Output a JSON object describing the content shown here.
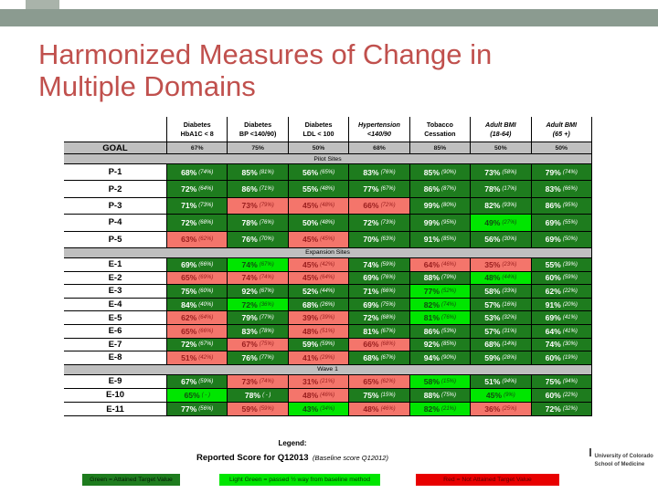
{
  "slide": {
    "title_line1": "Harmonized Measures of  Change in",
    "title_line2": "Multiple Domains"
  },
  "colors": {
    "accent_title": "#c0504d",
    "top_bar": "#8b9b90",
    "top_square": "#a9b3aa",
    "green": "#1e7c1e",
    "light_green": "#00e600",
    "red": "#f4756b",
    "legend_red": "#e80000",
    "band": "#bfbfbf"
  },
  "table": {
    "goal_label": "GOAL",
    "columns": [
      {
        "title": [
          "Diabetes",
          "HbA1C < 8"
        ],
        "goal": "67%",
        "italic": false
      },
      {
        "title": [
          "Diabetes",
          "BP <140/90)"
        ],
        "goal": "75%",
        "italic": false
      },
      {
        "title": [
          "Diabetes",
          "LDL < 100"
        ],
        "goal": "50%",
        "italic": false
      },
      {
        "title": [
          "Hypertension",
          "<140/90"
        ],
        "goal": "68%",
        "italic": true
      },
      {
        "title": [
          "Tobacco",
          "Cessation"
        ],
        "goal": "85%",
        "italic": false
      },
      {
        "title": [
          "Adult BMI",
          "(18-64)"
        ],
        "goal": "50%",
        "italic": true
      },
      {
        "title": [
          "Adult BMI",
          "(65 +)"
        ],
        "goal": "50%",
        "italic": true
      }
    ],
    "sections": [
      {
        "label": "Pilot Sites",
        "row_class": "pilot",
        "rows": [
          {
            "id": "P-1",
            "cells": [
              [
                "68%",
                "(74%)",
                "green"
              ],
              [
                "85%",
                "(81%)",
                "green"
              ],
              [
                "56%",
                "(65%)",
                "green"
              ],
              [
                "83%",
                "(76%)",
                "green"
              ],
              [
                "85%",
                "(90%)",
                "green"
              ],
              [
                "73%",
                "(58%)",
                "green"
              ],
              [
                "79%",
                "(74%)",
                "green"
              ]
            ]
          },
          {
            "id": "P-2",
            "cells": [
              [
                "72%",
                "(64%)",
                "green"
              ],
              [
                "86%",
                "(71%)",
                "green"
              ],
              [
                "55%",
                "(48%)",
                "green"
              ],
              [
                "77%",
                "(67%)",
                "green"
              ],
              [
                "86%",
                "(87%)",
                "green"
              ],
              [
                "78%",
                "(17%)",
                "green"
              ],
              [
                "83%",
                "(66%)",
                "green"
              ]
            ]
          },
          {
            "id": "P-3",
            "cells": [
              [
                "71%",
                "(73%)",
                "green"
              ],
              [
                "73%",
                "(79%)",
                "red"
              ],
              [
                "45%",
                "(48%)",
                "red"
              ],
              [
                "66%",
                "(72%)",
                "red"
              ],
              [
                "99%",
                "(80%)",
                "green"
              ],
              [
                "82%",
                "(93%)",
                "green"
              ],
              [
                "86%",
                "(95%)",
                "green"
              ]
            ]
          },
          {
            "id": "P-4",
            "cells": [
              [
                "72%",
                "(68%)",
                "green"
              ],
              [
                "78%",
                "(76%)",
                "green"
              ],
              [
                "50%",
                "(48%)",
                "green"
              ],
              [
                "72%",
                "(73%)",
                "green"
              ],
              [
                "99%",
                "(95%)",
                "green"
              ],
              [
                "49%",
                "(27%)",
                "light"
              ],
              [
                "69%",
                "(55%)",
                "green"
              ]
            ]
          },
          {
            "id": "P-5",
            "cells": [
              [
                "63%",
                "(62%)",
                "red"
              ],
              [
                "76%",
                "(70%)",
                "green"
              ],
              [
                "45%",
                "(45%)",
                "red"
              ],
              [
                "70%",
                "(63%)",
                "green"
              ],
              [
                "91%",
                "(85%)",
                "green"
              ],
              [
                "56%",
                "(30%)",
                "green"
              ],
              [
                "69%",
                "(50%)",
                "green"
              ]
            ]
          }
        ]
      },
      {
        "label": "Expansion Sites",
        "row_class": "expansion",
        "rows": [
          {
            "id": "E-1",
            "cells": [
              [
                "69%",
                "(66%)",
                "green"
              ],
              [
                "74%",
                "(67%)",
                "light"
              ],
              [
                "45%",
                "(42%)",
                "red"
              ],
              [
                "74%",
                "(59%)",
                "green"
              ],
              [
                "64%",
                "(46%)",
                "red"
              ],
              [
                "35%",
                "(23%)",
                "red"
              ],
              [
                "55%",
                "(39%)",
                "green"
              ]
            ]
          },
          {
            "id": "E-2",
            "cells": [
              [
                "65%",
                "(69%)",
                "red"
              ],
              [
                "74%",
                "(74%)",
                "red"
              ],
              [
                "45%",
                "(64%)",
                "red"
              ],
              [
                "69%",
                "(76%)",
                "green"
              ],
              [
                "88%",
                "(79%)",
                "green"
              ],
              [
                "48%",
                "(44%)",
                "light"
              ],
              [
                "60%",
                "(59%)",
                "green"
              ]
            ]
          },
          {
            "id": "E-3",
            "cells": [
              [
                "75%",
                "(60%)",
                "green"
              ],
              [
                "92%",
                "(67%)",
                "green"
              ],
              [
                "52%",
                "(44%)",
                "green"
              ],
              [
                "71%",
                "(66%)",
                "green"
              ],
              [
                "77%",
                "(52%)",
                "light"
              ],
              [
                "58%",
                "(33%)",
                "green"
              ],
              [
                "62%",
                "(22%)",
                "green"
              ]
            ]
          },
          {
            "id": "E-4",
            "cells": [
              [
                "84%",
                "(40%)",
                "green"
              ],
              [
                "72%",
                "(36%)",
                "light"
              ],
              [
                "68%",
                "(26%)",
                "green"
              ],
              [
                "69%",
                "(75%)",
                "green"
              ],
              [
                "82%",
                "(74%)",
                "light"
              ],
              [
                "57%",
                "(16%)",
                "green"
              ],
              [
                "91%",
                "(20%)",
                "green"
              ]
            ]
          },
          {
            "id": "E-5",
            "cells": [
              [
                "62%",
                "(64%)",
                "red"
              ],
              [
                "79%",
                "(77%)",
                "green"
              ],
              [
                "39%",
                "(39%)",
                "red"
              ],
              [
                "72%",
                "(68%)",
                "green"
              ],
              [
                "81%",
                "(76%)",
                "light"
              ],
              [
                "53%",
                "(32%)",
                "green"
              ],
              [
                "69%",
                "(41%)",
                "green"
              ]
            ]
          },
          {
            "id": "E-6",
            "cells": [
              [
                "65%",
                "(66%)",
                "red"
              ],
              [
                "83%",
                "(78%)",
                "green"
              ],
              [
                "48%",
                "(51%)",
                "red"
              ],
              [
                "81%",
                "(67%)",
                "green"
              ],
              [
                "86%",
                "(53%)",
                "green"
              ],
              [
                "57%",
                "(31%)",
                "green"
              ],
              [
                "64%",
                "(41%)",
                "green"
              ]
            ]
          },
          {
            "id": "E-7",
            "cells": [
              [
                "72%",
                "(67%)",
                "green"
              ],
              [
                "67%",
                "(75%)",
                "red"
              ],
              [
                "59%",
                "(59%)",
                "green"
              ],
              [
                "66%",
                "(68%)",
                "red"
              ],
              [
                "92%",
                "(85%)",
                "green"
              ],
              [
                "68%",
                "(14%)",
                "green"
              ],
              [
                "74%",
                "(30%)",
                "green"
              ]
            ]
          },
          {
            "id": "E-8",
            "cells": [
              [
                "51%",
                "(42%)",
                "red"
              ],
              [
                "76%",
                "(77%)",
                "green"
              ],
              [
                "41%",
                "(29%)",
                "red"
              ],
              [
                "68%",
                "(67%)",
                "green"
              ],
              [
                "94%",
                "(90%)",
                "green"
              ],
              [
                "59%",
                "(28%)",
                "green"
              ],
              [
                "60%",
                "(19%)",
                "green"
              ]
            ]
          }
        ]
      },
      {
        "label": "Wave 1",
        "row_class": "wave",
        "rows": [
          {
            "id": "E-9",
            "cells": [
              [
                "67%",
                "(59%)",
                "green"
              ],
              [
                "73%",
                "(74%)",
                "red"
              ],
              [
                "31%",
                "(21%)",
                "red"
              ],
              [
                "65%",
                "(62%)",
                "red"
              ],
              [
                "58%",
                "(15%)",
                "light"
              ],
              [
                "51%",
                "(94%)",
                "green"
              ],
              [
                "75%",
                "(94%)",
                "green"
              ]
            ]
          },
          {
            "id": "E-10",
            "cells": [
              [
                "65%",
                "( - )",
                "light"
              ],
              [
                "78%",
                "( - )",
                "green"
              ],
              [
                "48%",
                "(46%)",
                "red"
              ],
              [
                "75%",
                "(15%)",
                "green"
              ],
              [
                "88%",
                "(75%)",
                "green"
              ],
              [
                "45%",
                "(9%)",
                "light"
              ],
              [
                "60%",
                "(22%)",
                "green"
              ]
            ]
          },
          {
            "id": "E-11",
            "cells": [
              [
                "77%",
                "(56%)",
                "green"
              ],
              [
                "59%",
                "(59%)",
                "red"
              ],
              [
                "43%",
                "(34%)",
                "light"
              ],
              [
                "48%",
                "(46%)",
                "red"
              ],
              [
                "82%",
                "(21%)",
                "light"
              ],
              [
                "36%",
                "(25%)",
                "red"
              ],
              [
                "72%",
                "(32%)",
                "green"
              ]
            ]
          }
        ]
      }
    ]
  },
  "legend": {
    "heading": "Legend:",
    "subtitle_bold": "Reported Score for Q12013",
    "subtitle_italic": "(Baseline score Q12012)",
    "items": [
      {
        "text": "Green = Attained Target Value",
        "key": "green"
      },
      {
        "text": "Light Green = passed ½ way from baseline method",
        "key": "light_green"
      },
      {
        "text": "Red =  Not Attained Target Value",
        "key": "red"
      }
    ]
  },
  "footer": {
    "org_line1": "University of Colorado",
    "org_line2": "School of Medicine"
  }
}
